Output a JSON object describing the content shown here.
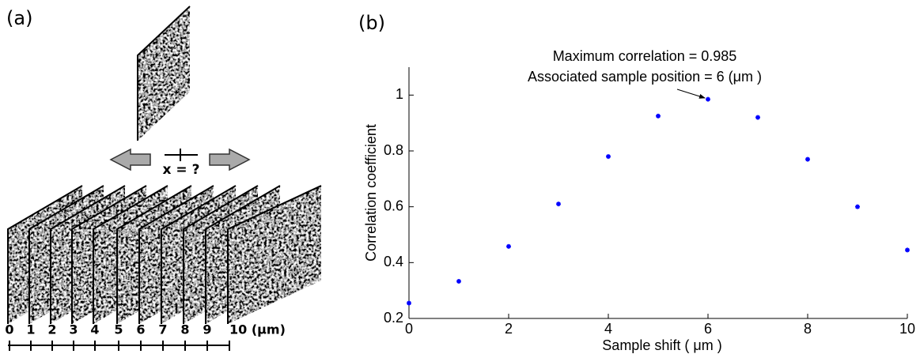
{
  "panel_a": {
    "label": "(a)",
    "question": "x = ?",
    "scale_labels": [
      "0",
      "1",
      "2",
      "3",
      "4",
      "5",
      "6",
      "7",
      "8",
      "9",
      "10 (μm)"
    ]
  },
  "chart_data": {
    "type": "scatter",
    "title": "(b)",
    "x_label": "Sample shift ( μm )",
    "y_label": "Correlation coefficient",
    "annotations": [
      "Maximum correlation = 0.985",
      "Associated sample position = 6 (μm )"
    ],
    "x": [
      0,
      1,
      2,
      3,
      4,
      5,
      6,
      7,
      8,
      9,
      10
    ],
    "values": [
      0.255,
      0.333,
      0.458,
      0.61,
      0.78,
      0.925,
      0.985,
      0.92,
      0.77,
      0.6,
      0.445
    ],
    "color": "#0000ff",
    "xlim": [
      0,
      10
    ],
    "ylim": [
      0.2,
      1.1
    ],
    "xticks": [
      0,
      2,
      4,
      6,
      8,
      10
    ],
    "yticks": [
      0.2,
      0.4,
      0.6,
      0.8,
      1
    ],
    "grid": false
  }
}
